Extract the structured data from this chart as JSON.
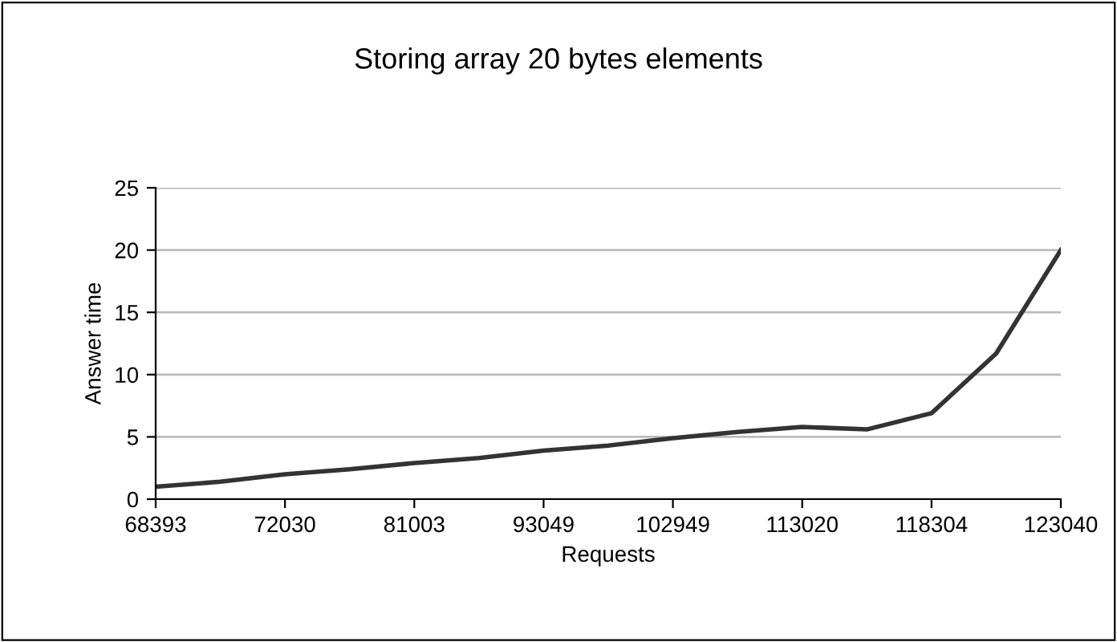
{
  "chart_data": {
    "type": "line",
    "title": "Storing array 20 bytes elements",
    "xlabel": "Requests",
    "ylabel": "Answer time",
    "categories": [
      "68393",
      null,
      "72030",
      null,
      "81003",
      null,
      "93049",
      null,
      "102949",
      null,
      "113020",
      null,
      "118304",
      null,
      "123040"
    ],
    "series": [
      {
        "color": "#333333",
        "values": [
          1.0,
          1.4,
          2.0,
          2.4,
          2.9,
          3.3,
          3.9,
          4.3,
          4.9,
          5.4,
          5.8,
          5.6,
          6.9,
          11.7,
          20
        ]
      }
    ],
    "ylim": [
      0,
      25
    ],
    "yticks": [
      0,
      5,
      10,
      15,
      20,
      25
    ],
    "grid": "y",
    "marker": "none",
    "line_style": "solid"
  }
}
